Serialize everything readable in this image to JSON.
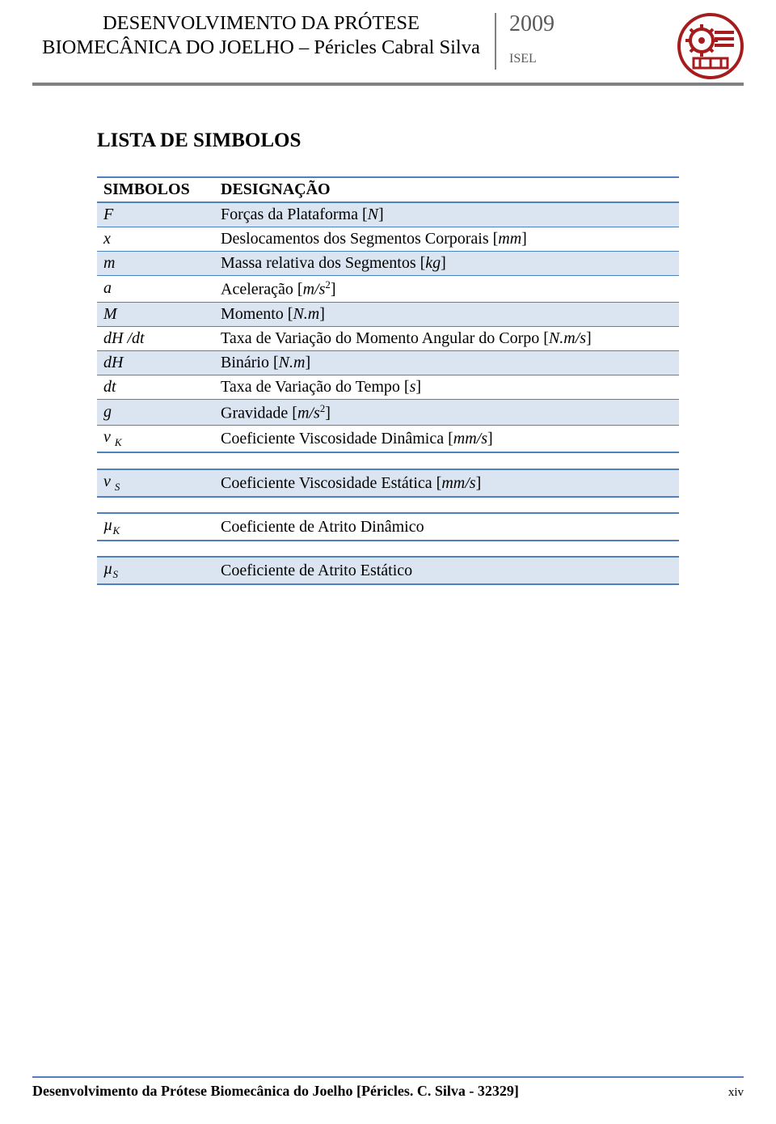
{
  "header": {
    "title_line1": "DESENVOLVIMENTO DA PRÓTESE",
    "title_line2": "BIOMECÂNICA DO JOELHO – Péricles Cabral Silva",
    "year": "2009",
    "isel": "ISEL"
  },
  "colors": {
    "accent": "#4f81bd",
    "tint": "#dbe5f1",
    "grey": "#808080",
    "grey_text": "#595959",
    "logo_red": "#a61c1c"
  },
  "section_title": "LISTA DE SIMBOLOS",
  "table": {
    "header": {
      "sym": "SIMBOLOS",
      "des": "DESIGNAÇÃO"
    },
    "rows": [
      {
        "sym_html": "F",
        "des_html": "Forças da Plataforma [<span class='nit'></span><i>N</i>]"
      },
      {
        "sym_html": "x",
        "des_html": "Deslocamentos dos Segmentos Corporais [<i>mm</i>]"
      },
      {
        "sym_html": "m",
        "des_html": "Massa relativa dos Segmentos [<i>kg</i>]"
      },
      {
        "sym_html": "a",
        "des_html": "Aceleração [<i>m/s</i><span class='sup'>2</span>]"
      },
      {
        "sym_html": "M",
        "des_html": "Momento [<i>N.m</i>]"
      },
      {
        "sym_html": "dH /dt",
        "des_html": "Taxa de Variação do Momento Angular do Corpo [<i>N.m/s</i>]"
      },
      {
        "sym_html": "dH",
        "des_html": "Binário [<i>N.m</i>]"
      },
      {
        "sym_html": "dt",
        "des_html": "Taxa de Variação do Tempo [<i>s</i>]"
      },
      {
        "sym_html": "g",
        "des_html": "Gravidade [<i>m/s</i><span class='sup'>2</span>]"
      },
      {
        "sym_html": "v <span class='sub'>K</span>",
        "des_html": "Coeficiente Viscosidade Dinâmica [<i>mm/s</i>]"
      }
    ],
    "separate": [
      {
        "sym_html": "v <span class='sub'>S</span>",
        "des_html": "Coeficiente Viscosidade Estática [<i>mm/s</i>]",
        "tint": true
      },
      {
        "sym_html": "µ<span class='sub'>K</span>",
        "des_html": "Coeficiente de Atrito Dinâmico",
        "tint": false
      },
      {
        "sym_html": "µ<span class='sub'>S</span>",
        "des_html": "Coeficiente de Atrito Estático",
        "tint": true
      }
    ]
  },
  "footer": {
    "text": "Desenvolvimento da Prótese Biomecânica do Joelho [Péricles. C. Silva - 32329]",
    "page": "xiv"
  }
}
